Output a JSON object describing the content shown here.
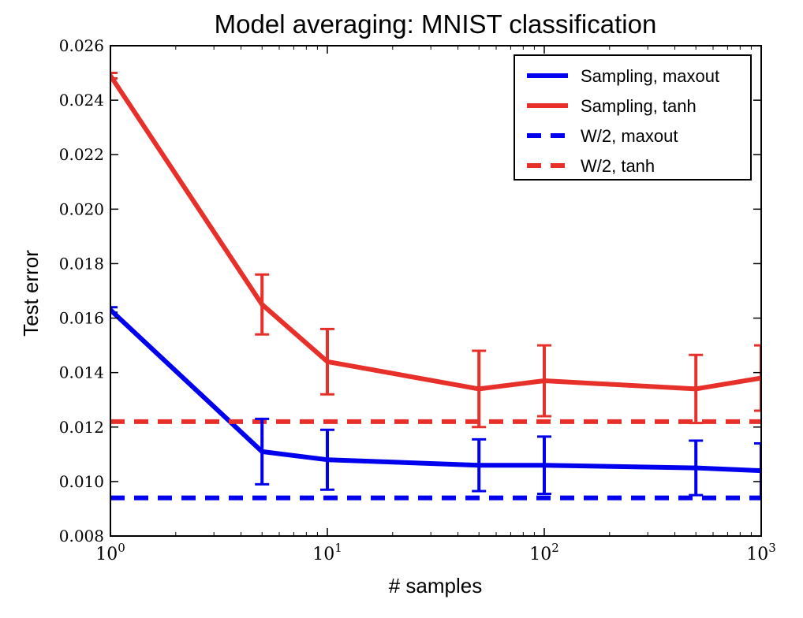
{
  "chart_data": {
    "type": "line",
    "title": "Model averaging: MNIST classification",
    "xlabel": "# samples",
    "ylabel": "Test error",
    "xscale": "log",
    "xlim": [
      1,
      1000
    ],
    "ylim": [
      0.008,
      0.026
    ],
    "x_ticks": [
      {
        "value": 1,
        "base": "10",
        "exp": "0"
      },
      {
        "value": 10,
        "base": "10",
        "exp": "1"
      },
      {
        "value": 100,
        "base": "10",
        "exp": "2"
      },
      {
        "value": 1000,
        "base": "10",
        "exp": "3"
      }
    ],
    "y_ticks": [
      "0.008",
      "0.010",
      "0.012",
      "0.014",
      "0.016",
      "0.018",
      "0.020",
      "0.022",
      "0.024",
      "0.026"
    ],
    "grid": false,
    "legend_position": "top-right",
    "series": [
      {
        "name": "Sampling, maxout",
        "color": "#0000ee",
        "style": "solid",
        "x": [
          1,
          5,
          10,
          50,
          100,
          500,
          1000
        ],
        "y": [
          0.0163,
          0.0111,
          0.0108,
          0.0106,
          0.0106,
          0.0105,
          0.0104
        ],
        "err": [
          0.0001,
          0.0012,
          0.0011,
          0.00095,
          0.00105,
          0.001,
          0.001
        ]
      },
      {
        "name": "Sampling, tanh",
        "color": "#e8302a",
        "style": "solid",
        "x": [
          1,
          5,
          10,
          50,
          100,
          500,
          1000
        ],
        "y": [
          0.0249,
          0.0165,
          0.0144,
          0.0134,
          0.0137,
          0.0134,
          0.0138
        ],
        "err": [
          0.0001,
          0.0011,
          0.0012,
          0.0014,
          0.0013,
          0.00125,
          0.0012
        ]
      },
      {
        "name": "W/2, maxout",
        "color": "#0000ee",
        "style": "dashed",
        "x": [
          1,
          1000
        ],
        "y": [
          0.0094,
          0.0094
        ]
      },
      {
        "name": "W/2, tanh",
        "color": "#e8302a",
        "style": "dashed",
        "x": [
          1,
          1000
        ],
        "y": [
          0.0122,
          0.0122
        ]
      }
    ]
  }
}
